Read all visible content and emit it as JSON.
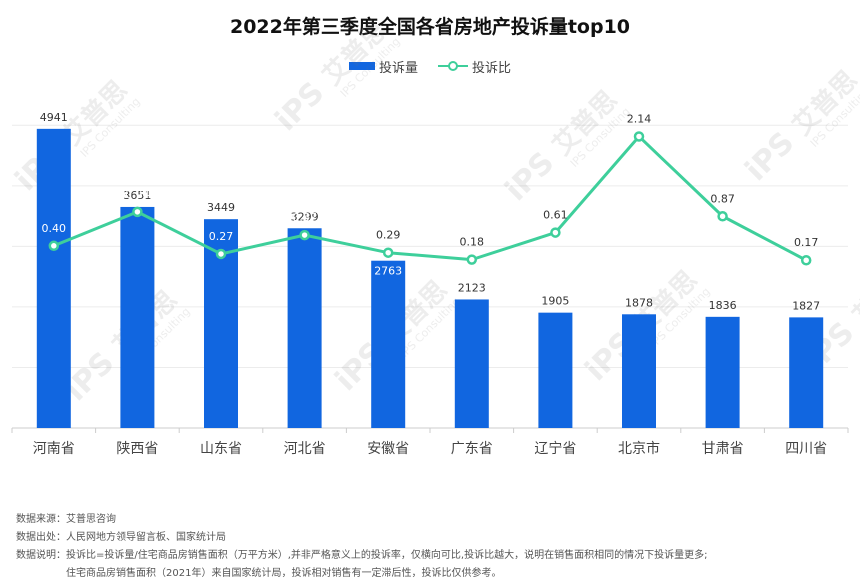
{
  "chart_data": {
    "type": "bar",
    "title": "2022年第三季度全国各省房地产投诉量top10",
    "categories": [
      "河南省",
      "陕西省",
      "山东省",
      "河北省",
      "安徽省",
      "广东省",
      "辽宁省",
      "北京市",
      "甘肃省",
      "四川省"
    ],
    "series": [
      {
        "name": "投诉量",
        "chart": "bar",
        "axis": "left",
        "color": "#1166e0",
        "values": [
          4941,
          3651,
          3449,
          3299,
          2763,
          2123,
          1905,
          1878,
          1836,
          1827
        ]
      },
      {
        "name": "投诉比",
        "chart": "line",
        "axis": "right",
        "color": "#3ecf9b",
        "values": [
          0.4,
          0.94,
          0.27,
          0.57,
          0.29,
          0.18,
          0.61,
          2.14,
          0.87,
          0.17
        ]
      }
    ],
    "ylim_left": [
      0,
      5500
    ],
    "ylim_right": [
      -2.5,
      2.8
    ],
    "grid": true,
    "legend_position": "top-center"
  },
  "notes": {
    "source_label": "数据来源：",
    "source_text": "艾普思咨询",
    "origin_label": "数据出处：",
    "origin_text": "人民网地方领导留言板、国家统计局",
    "desc_label": "数据说明：",
    "desc_text_1": "投诉比=投诉量/住宅商品房销售面积（万平方米）,并非严格意义上的投诉率，仅横向可比,投诉比越大，说明在销售面积相同的情况下投诉量更多;",
    "desc_text_2": "住宅商品房销售面积（2021年）来自国家统计局，投诉相对销售有一定滞后性，投诉比仅供参考。"
  },
  "watermark": {
    "brand": "艾普思",
    "logo": "iPS",
    "sub": "IPS Consulting"
  }
}
